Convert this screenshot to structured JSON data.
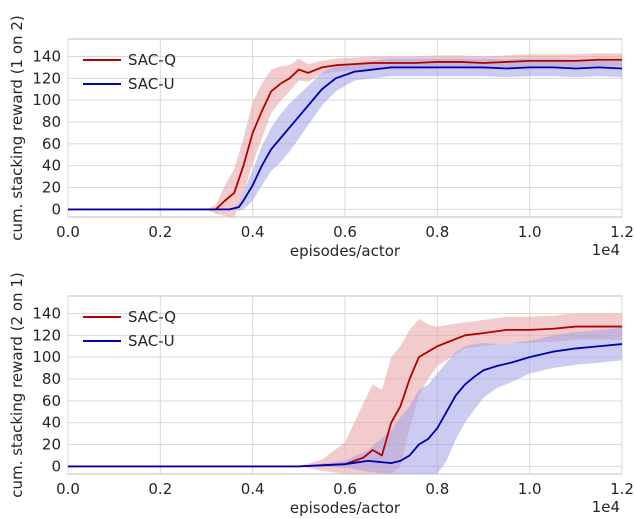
{
  "chart_data": [
    {
      "type": "line",
      "xlabel": "episodes/actor",
      "ylabel": "cum. stacking reward (1 on 2)",
      "x_multiplier_label": "1e4",
      "xlim": [
        0.0,
        1.2
      ],
      "ylim": [
        -7,
        156
      ],
      "xticks": [
        "0.0",
        "0.2",
        "0.4",
        "0.6",
        "0.8",
        "1.0",
        "1.2"
      ],
      "yticks": [
        "0",
        "20",
        "40",
        "60",
        "80",
        "100",
        "120",
        "140"
      ],
      "grid": true,
      "legend_position": "top-left",
      "series": [
        {
          "name": "SAC-Q",
          "color": "#b30000",
          "band_color": "#e8a3a3",
          "x": [
            0.0,
            0.3,
            0.32,
            0.34,
            0.36,
            0.38,
            0.4,
            0.42,
            0.44,
            0.46,
            0.48,
            0.5,
            0.52,
            0.55,
            0.58,
            0.62,
            0.66,
            0.7,
            0.75,
            0.8,
            0.85,
            0.9,
            0.95,
            1.0,
            1.05,
            1.1,
            1.15,
            1.2
          ],
          "values": [
            0,
            0,
            0,
            8,
            15,
            40,
            70,
            90,
            108,
            115,
            120,
            128,
            125,
            130,
            132,
            133,
            134,
            134,
            134,
            135,
            135,
            134,
            135,
            136,
            136,
            136,
            137,
            137
          ],
          "band": [
            0,
            0,
            4,
            14,
            22,
            25,
            28,
            25,
            20,
            16,
            12,
            10,
            8,
            6,
            6,
            6,
            6,
            6,
            6,
            6,
            6,
            6,
            6,
            6,
            6,
            6,
            6,
            6
          ]
        },
        {
          "name": "SAC-U",
          "color": "#0000b3",
          "band_color": "#a3a3e8",
          "x": [
            0.0,
            0.35,
            0.37,
            0.38,
            0.4,
            0.42,
            0.44,
            0.46,
            0.48,
            0.5,
            0.52,
            0.55,
            0.58,
            0.62,
            0.66,
            0.7,
            0.75,
            0.8,
            0.85,
            0.9,
            0.95,
            1.0,
            1.05,
            1.1,
            1.15,
            1.2
          ],
          "values": [
            0,
            0,
            2,
            8,
            22,
            40,
            55,
            65,
            75,
            85,
            95,
            110,
            120,
            126,
            128,
            130,
            130,
            130,
            130,
            130,
            129,
            130,
            130,
            129,
            130,
            129
          ],
          "band": [
            0,
            0,
            3,
            8,
            14,
            18,
            20,
            22,
            22,
            20,
            18,
            15,
            12,
            8,
            8,
            8,
            8,
            8,
            8,
            8,
            8,
            8,
            8,
            8,
            8,
            8
          ]
        }
      ]
    },
    {
      "type": "line",
      "xlabel": "episodes/actor",
      "ylabel": "cum. stacking reward (2 on 1)",
      "x_multiplier_label": "1e4",
      "xlim": [
        0.0,
        1.2
      ],
      "ylim": [
        -7,
        156
      ],
      "xticks": [
        "0.0",
        "0.2",
        "0.4",
        "0.6",
        "0.8",
        "1.0",
        "1.2"
      ],
      "yticks": [
        "0",
        "20",
        "40",
        "60",
        "80",
        "100",
        "120",
        "140"
      ],
      "grid": true,
      "legend_position": "top-left",
      "series": [
        {
          "name": "SAC-Q",
          "color": "#b30000",
          "band_color": "#e8a3a3",
          "x": [
            0.0,
            0.5,
            0.55,
            0.6,
            0.62,
            0.64,
            0.66,
            0.68,
            0.7,
            0.72,
            0.74,
            0.76,
            0.78,
            0.8,
            0.83,
            0.86,
            0.9,
            0.95,
            1.0,
            1.05,
            1.1,
            1.15,
            1.2
          ],
          "values": [
            0,
            0,
            1,
            2,
            5,
            8,
            15,
            10,
            40,
            55,
            80,
            100,
            105,
            110,
            115,
            120,
            122,
            125,
            125,
            126,
            128,
            128,
            128
          ],
          "band": [
            0,
            0,
            5,
            20,
            35,
            50,
            60,
            60,
            60,
            55,
            45,
            35,
            25,
            18,
            15,
            12,
            12,
            12,
            12,
            12,
            12,
            12,
            12
          ]
        },
        {
          "name": "SAC-U",
          "color": "#0000b3",
          "band_color": "#a3a3e8",
          "x": [
            0.0,
            0.5,
            0.6,
            0.65,
            0.7,
            0.72,
            0.74,
            0.76,
            0.78,
            0.8,
            0.82,
            0.84,
            0.86,
            0.88,
            0.9,
            0.93,
            0.96,
            1.0,
            1.05,
            1.1,
            1.15,
            1.2
          ],
          "values": [
            0,
            0,
            2,
            5,
            3,
            5,
            10,
            20,
            25,
            35,
            50,
            65,
            75,
            82,
            88,
            92,
            95,
            100,
            105,
            108,
            110,
            112
          ],
          "band": [
            0,
            0,
            3,
            10,
            30,
            40,
            45,
            50,
            50,
            50,
            45,
            40,
            35,
            30,
            25,
            20,
            18,
            15,
            15,
            15,
            15,
            15
          ]
        }
      ]
    }
  ]
}
